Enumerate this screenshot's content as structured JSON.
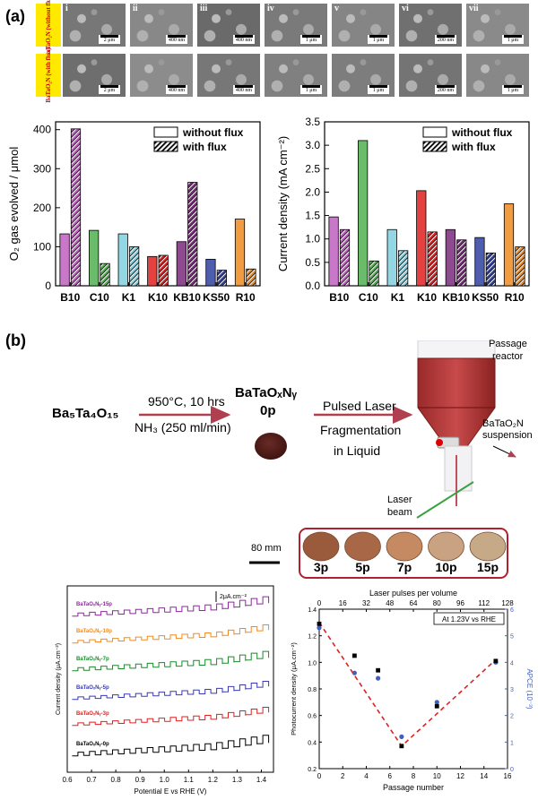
{
  "panel_a": {
    "label": "(a)",
    "sem_row_labels": [
      "BaTaO₂N (without flux)",
      "BaTaO₂N (with flux)"
    ],
    "sem_columns": [
      "i",
      "ii",
      "iii",
      "iv",
      "v",
      "vi",
      "vii"
    ],
    "scale_top": [
      "2 μm",
      "400 nm",
      "400 nm",
      "1 μm",
      "1 μm",
      "200 nm",
      "1 μm"
    ],
    "scale_bottom": [
      "2 μm",
      "400 nm",
      "400 nm",
      "1 μm",
      "1 μm",
      "200 nm",
      "1 μm"
    ]
  },
  "panel_b": {
    "label": "(b)",
    "precursor": "Ba₅Ta₄O₁₅",
    "cond1": "950°C, 10 hrs",
    "cond2": "NH₃ (250 ml/min)",
    "product": "BaTaOₓNᵧ",
    "product_sub": "0p",
    "step1": "Pulsed Laser",
    "step2": "Fragmentation",
    "step3": "in Liquid",
    "reactor_label_1": "Passage",
    "reactor_label_2": "reactor",
    "suspension_1": "BaTaO₂N",
    "suspension_2": "suspension",
    "laser_1": "Laser",
    "laser_2": "beam",
    "scale_bar": "80 mm",
    "samples": [
      "3p",
      "5p",
      "7p",
      "10p",
      "15p"
    ],
    "sample_colors": [
      "#9a5a3c",
      "#a86848",
      "#c58a62",
      "#c9a282",
      "#c6aa88"
    ]
  },
  "chart_data": [
    {
      "type": "bar",
      "title": "",
      "ylabel": "O₂ gas evolved / μmol",
      "xlabel": "",
      "categories": [
        "B10",
        "C10",
        "K1",
        "K10",
        "KB10",
        "KS50",
        "R10"
      ],
      "ylim": [
        0,
        420
      ],
      "yticks": [
        "0",
        "100",
        "200",
        "300",
        "400"
      ],
      "series": [
        {
          "name": "without flux",
          "values": [
            133,
            142,
            133,
            75,
            113,
            68,
            171
          ]
        },
        {
          "name": "with flux",
          "values": [
            402,
            57,
            100,
            78,
            265,
            40,
            43
          ]
        }
      ],
      "colors": [
        "#c060c0",
        "#50b050",
        "#80d0e0",
        "#e02020",
        "#7a2a7a",
        "#3040a0",
        "#f08a20"
      ],
      "legend": "top-right"
    },
    {
      "type": "bar",
      "title": "",
      "ylabel": "Current density (mA cm⁻²)",
      "xlabel": "",
      "categories": [
        "B10",
        "C10",
        "K1",
        "K10",
        "KB10",
        "KS50",
        "R10"
      ],
      "ylim": [
        0,
        3.5
      ],
      "yticks": [
        "0.0",
        "0.5",
        "1.0",
        "1.5",
        "2.0",
        "2.5",
        "3.0",
        "3.5"
      ],
      "series": [
        {
          "name": "without flux",
          "values": [
            1.47,
            3.1,
            1.2,
            2.03,
            1.2,
            1.03,
            1.75
          ]
        },
        {
          "name": "with flux",
          "values": [
            1.2,
            0.53,
            0.75,
            1.15,
            0.98,
            0.7,
            0.83
          ]
        }
      ],
      "colors": [
        "#c060c0",
        "#50b050",
        "#80d0e0",
        "#e02020",
        "#7a2a7a",
        "#3040a0",
        "#f08a20"
      ],
      "legend": "top-right"
    },
    {
      "type": "line",
      "title": "",
      "xlabel": "Potential E vs RHE (V)",
      "ylabel": "Current density (μA.cm⁻²)",
      "xlim": [
        0.6,
        1.45
      ],
      "xticks": [
        "0.6",
        "0.7",
        "0.8",
        "0.9",
        "1.0",
        "1.1",
        "1.2",
        "1.3",
        "1.4"
      ],
      "scale_label": "2μA.cm⁻²",
      "series": [
        {
          "name": "BaTaOₓNᵧ-15p",
          "color": "#8a2a9a"
        },
        {
          "name": "BaTaOₓNᵧ-10p",
          "color": "#f08a20"
        },
        {
          "name": "BaTaOₓNᵧ-7p",
          "color": "#1a8a2a"
        },
        {
          "name": "BaTaOₓNᵧ-5p",
          "color": "#3a3ab0"
        },
        {
          "name": "BaTaOₓNᵧ-3p",
          "color": "#e02020"
        },
        {
          "name": "BaTaOₓNᵧ-0p",
          "color": "#000000"
        }
      ]
    },
    {
      "type": "scatter",
      "title": "",
      "annotation": "At 1.23V vs RHE",
      "xlabel": "Passage number",
      "ylabel": "Photocurrent density (μA.cm⁻²)",
      "y2label": "APCE (10⁻³)",
      "top_xlabel": "Laser pulses per volume",
      "xlim": [
        0,
        16
      ],
      "ylim": [
        0.2,
        1.4
      ],
      "y2lim": [
        0,
        6
      ],
      "xticks": [
        "0",
        "2",
        "4",
        "6",
        "8",
        "10",
        "12",
        "14",
        "16"
      ],
      "top_xticks": [
        "0",
        "16",
        "32",
        "48",
        "64",
        "80",
        "96",
        "112",
        "128"
      ],
      "yticks": [
        "0.2",
        "0.4",
        "0.6",
        "0.8",
        "1.0",
        "1.2",
        "1.4"
      ],
      "y2ticks": [
        "0",
        "1",
        "2",
        "3",
        "4",
        "5",
        "6"
      ],
      "series": [
        {
          "name": "Photocurrent density",
          "color": "#000000",
          "x": [
            0,
            3,
            5,
            7,
            10,
            15
          ],
          "y": [
            1.29,
            1.05,
            0.94,
            0.37,
            0.67,
            1.01
          ]
        },
        {
          "name": "APCE",
          "color": "#4060c0",
          "x": [
            0,
            3,
            5,
            7,
            10,
            15
          ],
          "y": [
            5.3,
            3.6,
            3.4,
            1.2,
            2.5,
            4.0
          ]
        }
      ],
      "trend": {
        "x": [
          0,
          7,
          15
        ],
        "y": [
          1.3,
          0.37,
          1.02
        ],
        "color": "#e02020"
      }
    }
  ]
}
